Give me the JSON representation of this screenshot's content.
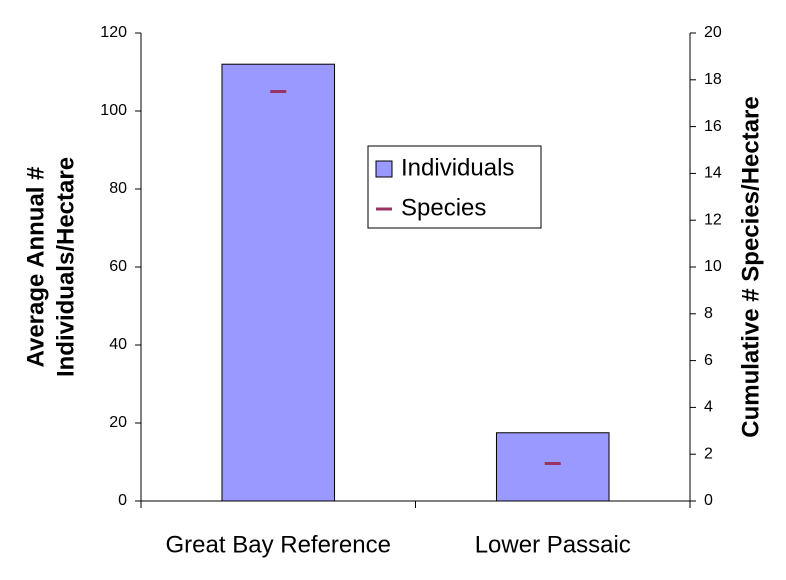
{
  "chart_data": {
    "type": "bar",
    "categories": [
      "Great Bay Reference",
      "Lower Passaic"
    ],
    "series": [
      {
        "name": "Individuals",
        "color": "#9999ff",
        "values": [
          112,
          17.5
        ]
      },
      {
        "name": "Species",
        "color": "#993366",
        "values": [
          17.5,
          1.6
        ],
        "axis": "y2",
        "marker": "dash"
      }
    ],
    "ylabel": [
      "Average Annual #",
      "Individuals/Hectare"
    ],
    "y2label": "Cumulative # Species/Hectare",
    "ylim": [
      0,
      120
    ],
    "yticks": [
      0,
      20,
      40,
      60,
      80,
      100,
      120
    ],
    "y2lim": [
      0,
      20
    ],
    "y2ticks": [
      0,
      2,
      4,
      6,
      8,
      10,
      12,
      14,
      16,
      18,
      20
    ],
    "grid": false
  }
}
